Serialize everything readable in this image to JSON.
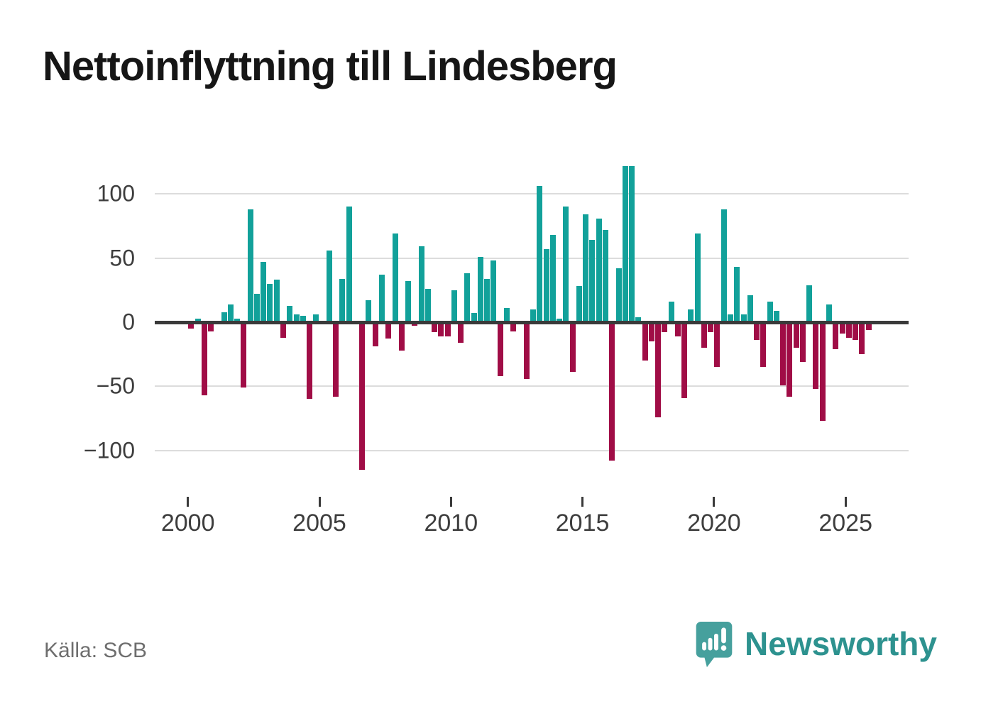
{
  "header": {
    "title": "Nettoinflyttning till Lindesberg"
  },
  "footer": {
    "source": "Källa: SCB",
    "brand": "Newsworthy"
  },
  "chart_data": {
    "type": "bar",
    "title": "Nettoinflyttning till Lindesberg",
    "source": "Källa: SCB",
    "x": [
      "2000Q1",
      "2000Q2",
      "2000Q3",
      "2000Q4",
      "2001Q1",
      "2001Q2",
      "2001Q3",
      "2001Q4",
      "2002Q1",
      "2002Q2",
      "2002Q3",
      "2002Q4",
      "2003Q1",
      "2003Q2",
      "2003Q3",
      "2003Q4",
      "2004Q1",
      "2004Q2",
      "2004Q3",
      "2004Q4",
      "2005Q1",
      "2005Q2",
      "2005Q3",
      "2005Q4",
      "2006Q1",
      "2006Q2",
      "2006Q3",
      "2006Q4",
      "2007Q1",
      "2007Q2",
      "2007Q3",
      "2007Q4",
      "2008Q1",
      "2008Q2",
      "2008Q3",
      "2008Q4",
      "2009Q1",
      "2009Q2",
      "2009Q3",
      "2009Q4",
      "2010Q1",
      "2010Q2",
      "2010Q3",
      "2010Q4",
      "2011Q1",
      "2011Q2",
      "2011Q3",
      "2011Q4",
      "2012Q1",
      "2012Q2",
      "2012Q3",
      "2012Q4",
      "2013Q1",
      "2013Q2",
      "2013Q3",
      "2013Q4",
      "2014Q1",
      "2014Q2",
      "2014Q3",
      "2014Q4",
      "2015Q1",
      "2015Q2",
      "2015Q3",
      "2015Q4",
      "2016Q1",
      "2016Q2",
      "2016Q3",
      "2016Q4",
      "2017Q1",
      "2017Q2",
      "2017Q3",
      "2017Q4",
      "2018Q1",
      "2018Q2",
      "2018Q3",
      "2018Q4",
      "2019Q1",
      "2019Q2",
      "2019Q3",
      "2019Q4",
      "2020Q1",
      "2020Q2",
      "2020Q3",
      "2020Q4",
      "2021Q1",
      "2021Q2",
      "2021Q3",
      "2021Q4",
      "2022Q1",
      "2022Q2",
      "2022Q3",
      "2022Q4",
      "2023Q1",
      "2023Q2",
      "2023Q3",
      "2023Q4",
      "2024Q1",
      "2024Q2",
      "2024Q3",
      "2024Q4",
      "2025Q1",
      "2025Q2",
      "2025Q3",
      "2025Q4"
    ],
    "values": [
      -5,
      3,
      -57,
      -7,
      0,
      8,
      14,
      3,
      -51,
      88,
      22,
      47,
      30,
      33,
      -12,
      13,
      6,
      5,
      -60,
      6,
      0,
      56,
      -58,
      34,
      90,
      0,
      -115,
      17,
      -19,
      37,
      -13,
      69,
      -22,
      32,
      -3,
      59,
      26,
      -8,
      -11,
      -11,
      25,
      -16,
      38,
      7,
      51,
      34,
      48,
      -42,
      11,
      -7,
      0,
      -44,
      10,
      106,
      57,
      68,
      3,
      90,
      -39,
      28,
      84,
      64,
      81,
      72,
      -108,
      42,
      122,
      122,
      4,
      -30,
      -15,
      -74,
      -8,
      16,
      -11,
      -59,
      10,
      69,
      -20,
      -8,
      -35,
      88,
      6,
      43,
      6,
      21,
      -14,
      -35,
      16,
      9,
      -49,
      -58,
      -20,
      -31,
      29,
      -52,
      -77,
      14,
      -21,
      -9,
      -12,
      -14,
      -25,
      -6
    ],
    "x_tick_labels": [
      "2000",
      "2005",
      "2010",
      "2015",
      "2020",
      "2025"
    ],
    "y_ticks": [
      100,
      50,
      0,
      -50,
      -100
    ],
    "y_tick_labels": [
      "100",
      "50",
      "0",
      "−50",
      "−100"
    ],
    "ylim": [
      -123,
      130
    ],
    "xlabel": "",
    "ylabel": "",
    "grid": "horizontal",
    "legend": "none",
    "positive_color": "#12a19a",
    "negative_color": "#a00d46"
  },
  "icons": {
    "logo": "newsworthy-speech-bubble-chart-icon"
  }
}
